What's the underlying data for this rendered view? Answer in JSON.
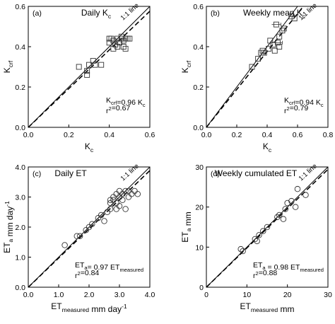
{
  "chart_data": [
    {
      "type": "scatter",
      "panel": "(a)",
      "title": "Daily K",
      "title_sub": "c",
      "xlabel": {
        "main": "K",
        "sub": "c",
        "tail": ""
      },
      "ylabel": {
        "main": "K",
        "sub": "crf",
        "tail": ""
      },
      "xlim": [
        0,
        0.6
      ],
      "ylim": [
        0,
        0.6
      ],
      "xticks": [
        0,
        0.2,
        0.4,
        0.6
      ],
      "xtick_labels": [
        "0.0",
        "0.2",
        "0.4",
        "0.6"
      ],
      "yticks": [
        0,
        0.2,
        0.4,
        0.6
      ],
      "ytick_labels": [
        "0.0",
        "0.2",
        "0.4",
        "0.6"
      ],
      "marker": "square",
      "one_to_one_label": "1:1 line",
      "slope": 0.96,
      "eq_lines": [
        {
          "parts": [
            {
              "t": "K"
            },
            {
              "t": "crf",
              "sub": true
            },
            {
              "t": "=0.96 K"
            },
            {
              "t": "c",
              "sub": true
            }
          ]
        },
        {
          "parts": [
            {
              "t": "r"
            },
            {
              "t": "2",
              "sup": true
            },
            {
              "t": "=0.67"
            }
          ]
        }
      ],
      "points": [
        [
          0.25,
          0.3
        ],
        [
          0.29,
          0.28
        ],
        [
          0.3,
          0.31
        ],
        [
          0.32,
          0.33
        ],
        [
          0.33,
          0.31
        ],
        [
          0.36,
          0.31
        ],
        [
          0.29,
          0.26
        ],
        [
          0.4,
          0.42
        ],
        [
          0.41,
          0.44
        ],
        [
          0.42,
          0.43
        ],
        [
          0.43,
          0.41
        ],
        [
          0.44,
          0.44
        ],
        [
          0.45,
          0.42
        ],
        [
          0.46,
          0.44
        ],
        [
          0.47,
          0.43
        ],
        [
          0.48,
          0.44
        ],
        [
          0.49,
          0.44
        ],
        [
          0.5,
          0.44
        ],
        [
          0.42,
          0.39
        ],
        [
          0.44,
          0.4
        ],
        [
          0.47,
          0.4
        ],
        [
          0.48,
          0.39
        ],
        [
          0.4,
          0.44
        ],
        [
          0.46,
          0.45
        ]
      ]
    },
    {
      "type": "scatter",
      "panel": "(b)",
      "title": "Weekly mean K",
      "title_sub": "c",
      "xlabel": {
        "main": "K",
        "sub": "c",
        "tail": ""
      },
      "ylabel": {
        "main": "K",
        "sub": "crf",
        "tail": ""
      },
      "xlim": [
        0,
        0.8
      ],
      "ylim": [
        0,
        0.6
      ],
      "xticks": [
        0,
        0.2,
        0.4,
        0.6,
        0.8
      ],
      "xtick_labels": [
        "0.0",
        "0.2",
        "0.4",
        "0.6",
        "0.8"
      ],
      "yticks": [
        0,
        0.2,
        0.4,
        0.6
      ],
      "ytick_labels": [
        "0.0",
        "0.2",
        "0.4",
        "0.6"
      ],
      "marker": "square",
      "one_to_one_label": "1:1 line",
      "slope": 0.94,
      "eq_lines": [
        {
          "parts": [
            {
              "t": "K"
            },
            {
              "t": "crf",
              "sub": true
            },
            {
              "t": "=0.94 K"
            },
            {
              "t": "c",
              "sub": true
            }
          ]
        },
        {
          "parts": [
            {
              "t": "r"
            },
            {
              "t": "2",
              "sup": true
            },
            {
              "t": "=0.79"
            }
          ]
        }
      ],
      "points": [
        [
          0.3,
          0.3
        ],
        [
          0.34,
          0.34
        ],
        [
          0.37,
          0.38
        ],
        [
          0.38,
          0.37
        ],
        [
          0.41,
          0.39
        ],
        [
          0.42,
          0.43
        ],
        [
          0.44,
          0.41
        ],
        [
          0.45,
          0.38
        ],
        [
          0.47,
          0.42
        ],
        [
          0.48,
          0.45
        ],
        [
          0.48,
          0.4
        ],
        [
          0.5,
          0.48
        ],
        [
          0.51,
          0.49
        ],
        [
          0.46,
          0.51
        ],
        [
          0.56,
          0.55
        ],
        [
          0.58,
          0.54
        ],
        [
          0.36,
          0.37
        ]
      ],
      "error_bars": [
        [
          0.46,
          0.51,
          0.03
        ],
        [
          0.47,
          0.42,
          0.03
        ],
        [
          0.56,
          0.55,
          0.02
        ]
      ]
    },
    {
      "type": "scatter",
      "panel": "(c)",
      "title": "Daily ET",
      "title_sub": "",
      "xlabel": {
        "main": "ET",
        "sub": "measured",
        "tail": " mm day",
        "sup": "-1"
      },
      "ylabel": {
        "main": "ET",
        "sub": "a",
        "tail": " mm day",
        "sup": "-1"
      },
      "xlim": [
        0,
        4.0
      ],
      "ylim": [
        0,
        4.0
      ],
      "xticks": [
        0,
        1,
        2,
        3,
        4
      ],
      "xtick_labels": [
        "0.0",
        "1.0",
        "2.0",
        "3.0",
        "4.0"
      ],
      "yticks": [
        0,
        1,
        2,
        3,
        4
      ],
      "ytick_labels": [
        "0.0",
        "1.0",
        "2.0",
        "3.0",
        "4.0"
      ],
      "marker": "circle",
      "one_to_one_label": "1:1 line",
      "slope": 0.97,
      "eq_lines": [
        {
          "parts": [
            {
              "t": "ET"
            },
            {
              "t": "a",
              "sub": true
            },
            {
              "t": "= 0.97 ET"
            },
            {
              "t": "measured",
              "sub": true
            }
          ]
        },
        {
          "parts": [
            {
              "t": "r"
            },
            {
              "t": "2",
              "sup": true
            },
            {
              "t": "=0.84"
            }
          ]
        }
      ],
      "points": [
        [
          1.2,
          1.4
        ],
        [
          1.6,
          1.7
        ],
        [
          1.7,
          1.7
        ],
        [
          1.9,
          1.9
        ],
        [
          2.0,
          2.0
        ],
        [
          2.1,
          2.1
        ],
        [
          2.3,
          2.3
        ],
        [
          2.4,
          2.4
        ],
        [
          2.5,
          2.2
        ],
        [
          2.6,
          2.5
        ],
        [
          2.7,
          2.8
        ],
        [
          2.7,
          2.6
        ],
        [
          2.8,
          2.9
        ],
        [
          2.8,
          3.0
        ],
        [
          2.9,
          3.1
        ],
        [
          2.9,
          2.8
        ],
        [
          3.0,
          3.0
        ],
        [
          3.0,
          3.2
        ],
        [
          3.1,
          2.9
        ],
        [
          3.1,
          3.1
        ],
        [
          3.2,
          3.2
        ],
        [
          3.2,
          2.6
        ],
        [
          3.3,
          3.0
        ],
        [
          3.3,
          3.2
        ],
        [
          3.4,
          3.1
        ],
        [
          3.5,
          3.2
        ],
        [
          3.6,
          3.1
        ],
        [
          2.7,
          2.9
        ],
        [
          2.9,
          2.6
        ],
        [
          3.0,
          2.7
        ]
      ]
    },
    {
      "type": "scatter",
      "panel": "(d)",
      "title": "Weekly cumulated ET",
      "title_sub": "",
      "xlabel": {
        "main": "ET",
        "sub": "measured",
        "tail": " mm"
      },
      "ylabel": {
        "main": "ET",
        "sub": "a",
        "tail": " mm"
      },
      "xlim": [
        0,
        30
      ],
      "ylim": [
        0,
        30
      ],
      "xticks": [
        0,
        10,
        20,
        30
      ],
      "xtick_labels": [
        "0",
        "10",
        "20",
        "30"
      ],
      "yticks": [
        0,
        10,
        20,
        30
      ],
      "ytick_labels": [
        "0",
        "10",
        "20",
        "30"
      ],
      "marker": "circle",
      "one_to_one_label": "1:1 line",
      "slope": 0.98,
      "eq_lines": [
        {
          "parts": [
            {
              "t": "ET"
            },
            {
              "t": "a",
              "sub": true
            },
            {
              "t": " = 0.98 ET"
            },
            {
              "t": "measured",
              "sub": true
            }
          ]
        },
        {
          "parts": [
            {
              "t": "r"
            },
            {
              "t": "2",
              "sup": true
            },
            {
              "t": "=0.88"
            }
          ]
        }
      ],
      "points": [
        [
          8.5,
          9.5
        ],
        [
          9.0,
          9.0
        ],
        [
          12.0,
          12.0
        ],
        [
          13.0,
          13.0
        ],
        [
          14.0,
          14.0
        ],
        [
          15.0,
          15.0
        ],
        [
          18.0,
          18.0
        ],
        [
          19.0,
          17.0
        ],
        [
          19.5,
          19.5
        ],
        [
          20.0,
          21.0
        ],
        [
          21.0,
          21.5
        ],
        [
          22.0,
          20.0
        ],
        [
          22.5,
          24.5
        ],
        [
          24.5,
          23.0
        ],
        [
          12.5,
          11.5
        ],
        [
          17.5,
          17.5
        ]
      ]
    }
  ]
}
